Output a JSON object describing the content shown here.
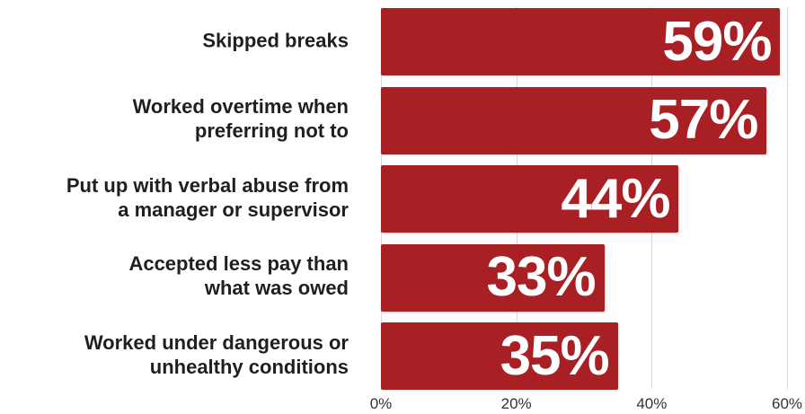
{
  "chart_data": {
    "type": "bar",
    "orientation": "horizontal",
    "categories": [
      [
        "Skipped breaks"
      ],
      [
        "Worked overtime when",
        "preferring not to"
      ],
      [
        "Put up with verbal abuse from",
        "a manager or supervisor"
      ],
      [
        "Accepted less pay than",
        "what was owed"
      ],
      [
        "Worked under dangerous or",
        "unhealthy conditions"
      ]
    ],
    "values": [
      59,
      57,
      44,
      33,
      35
    ],
    "data_labels": [
      "59%",
      "57%",
      "44%",
      "33%",
      "35%"
    ],
    "xlim": [
      0,
      60
    ],
    "xticks": [
      0,
      20,
      40,
      60
    ],
    "xtick_labels": [
      "0%",
      "20%",
      "40%",
      "60%"
    ],
    "grid": true,
    "colors": {
      "bar": "#a81f24",
      "value_text": "#ffffff",
      "grid": "#d9d9d9"
    }
  }
}
